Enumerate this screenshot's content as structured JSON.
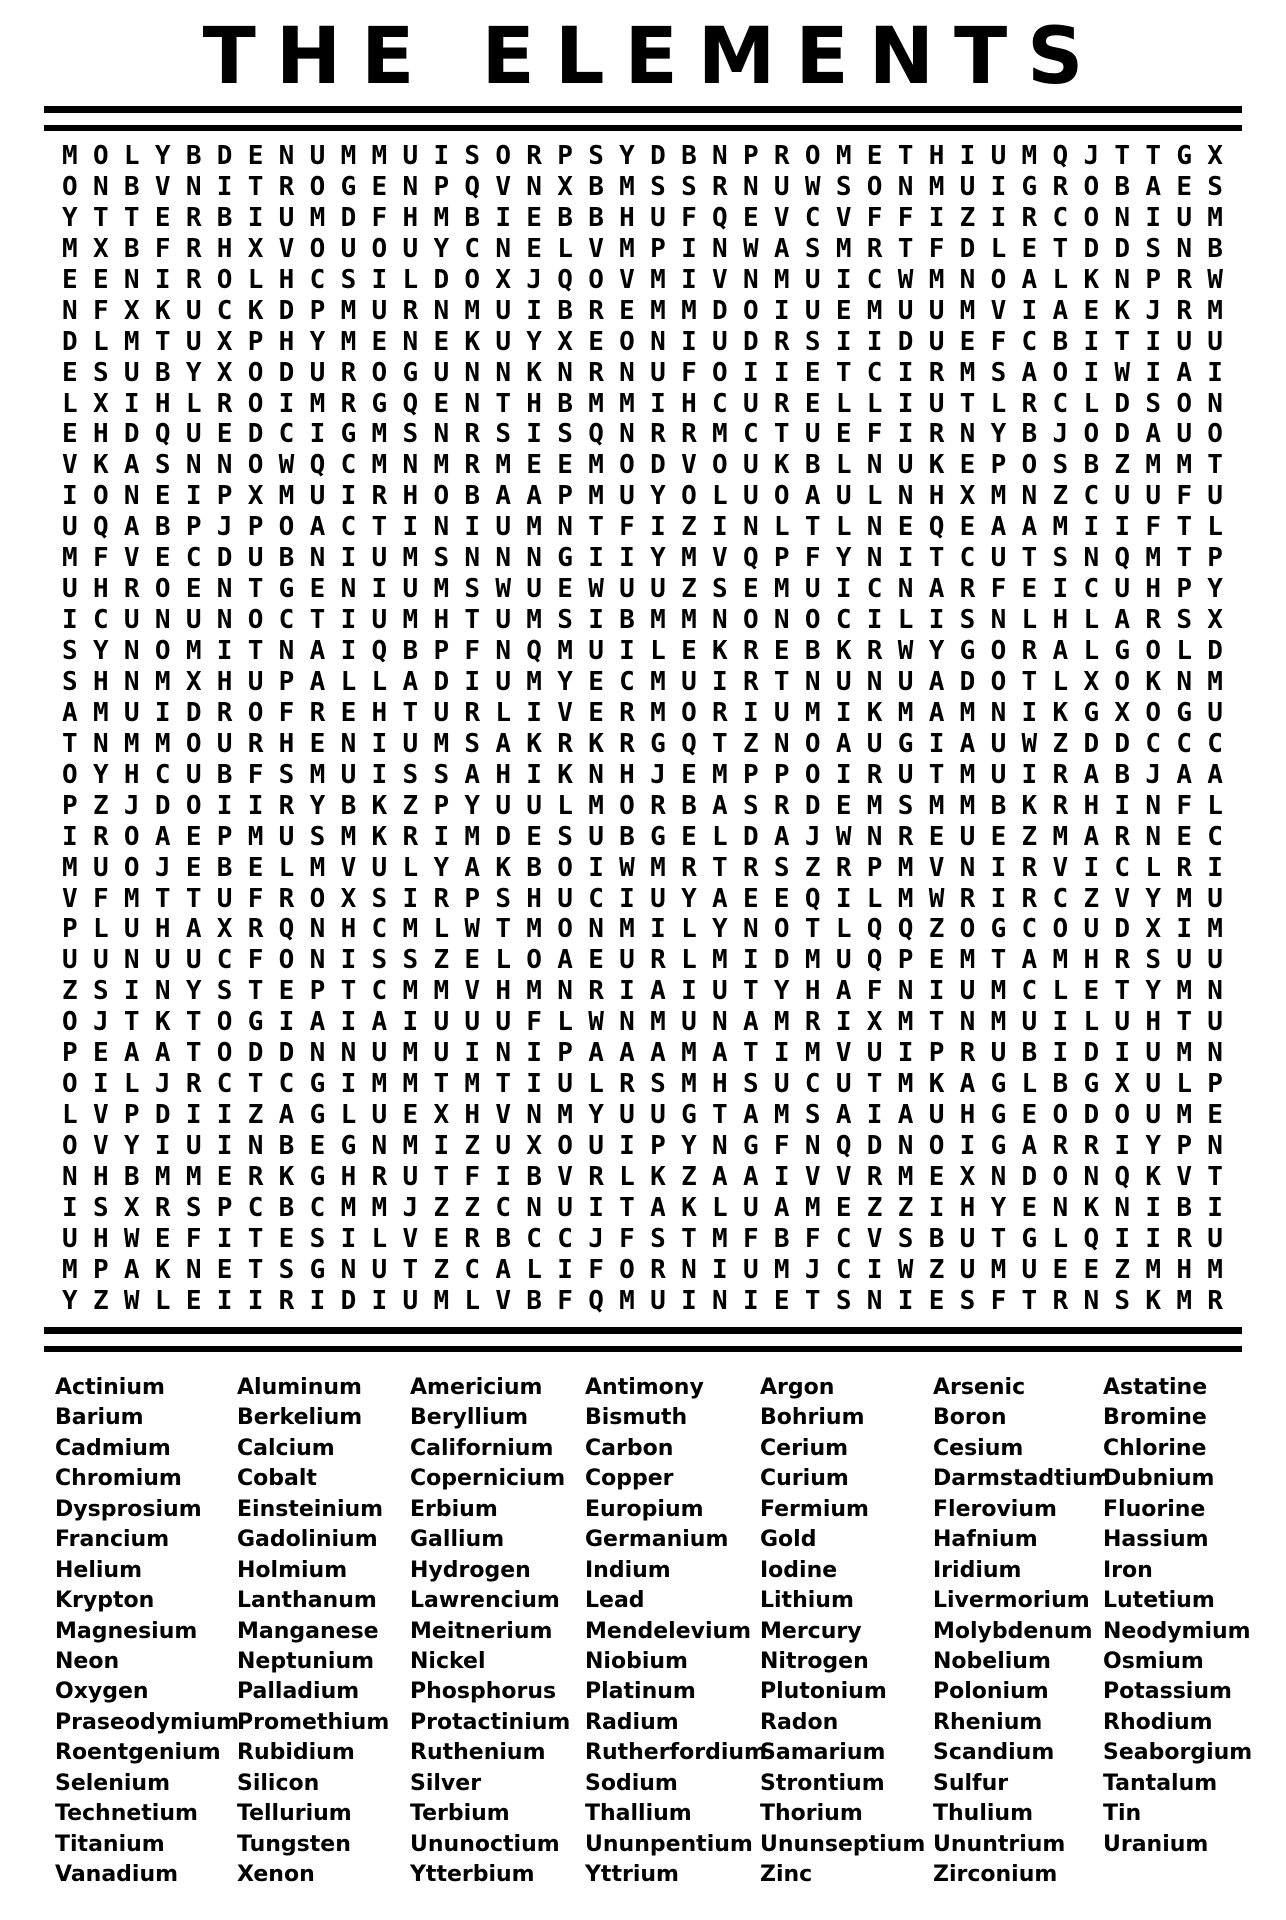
{
  "page": {
    "title": "THE ELEMENTS"
  },
  "colors": {
    "ink": "#000000",
    "paper": "#ffffff"
  },
  "puzzle": {
    "rows": [
      "MOLYBDENUMMUISORPSYDBNPROMETHIUMQJTTGX",
      "ONBVNITROGENPQVNXBMSSRNUWSONMUIGROBAES",
      "YTTERBIUMDFHMBIEBBHUFQEVCVFFIZIRCONIUM",
      "MXBFRHXVOUOUYCNELVMPINWASMRTFDLETDDSNB",
      "EENIROLHCSILDOXJQOVMIVNMUICWMNOALKNPRW",
      "NFXKUCKDPMURNMUIBREMMDOIUEMUUMVIAEKJRM",
      "DLMTUXPHYMENEKUYXEONIUDRSIIDUEFCBITIUU",
      "ESUBYXODUROGUNNKNRNUFOIIETCIRMSAOIWIAI",
      "LXIHLROIMRGQENTHBMMIHCURELLIUTLRCLDSON",
      "EHDQUEDCIGMSNRSISQNRRMCTUEFIRNYBJODAUO",
      "VKASNNOWQCMNMRMEEMODVOUKBLNUKEPOSBZMMT",
      "IONEIPXMUIRHOBAAPMUYOLUOAULNHXMNZCUUFU",
      "UQABPJPOACTINIUMNTFIZINLTLNEQEAAMIIFTL",
      "MFVECDUBNIUMSNNNGIIYMVQPFYNITCUTSNQMTP",
      "UHROENTGENIUMSWUEWUUZSEMUICNARFEICUHPY",
      "ICUNUNOCTIUMHTUMSIBMMNONOCILISNLHLARSX",
      "SYNOMITNAIQBPFNQMUILEKREBKRWYGORALGOLD",
      "SHNMXHUPALLADIUMYECMUIRTNUNUADOTLXOKNM",
      "AMUIDROFREHTURLIVERMORIUMIKMAMNIKGXOGU",
      "TNMMOURHENIUMSAKRKRGQTZNOAUGIAUWZDDCCC",
      "OYHCUBFSMUISSAHIKNHJEMPPOIRUTMUIRABJAA",
      "PZJDOIIRYBKZPYUULMORBASRDEMSMMBKRHINFL",
      "IROAEPMUSMKRIMDESUBGELDAJWNREUEZMARNEC",
      "MUOJEBELMVULYAKBOIWMRTRSZRPMVNIRVICLRI",
      "VFMTTUFROXSIRPSHUCIUYAEEQILMWRIRCZVYMU",
      "PLUHAXRQNHCMLWTMONMILYNOTLQQZOGCOUDXIM",
      "UUNUUCFONISSZELOAEURLMIDMUQPEMTAMHRSUU",
      "ZSINYSTEPTCMMVHMNRIAIUTYHAFNIUMCLETYMN",
      "OJTKTOGIAIAIUUUFLWNMUNAMRIXMTNMUILUHTU",
      "PEAATODDNNUMUINIPAAAMATIMVUIPRUBIDIUMN",
      "OILJRCTCGIMMTMTIULRSMHSUCUTMKAGLBGXULP",
      "LVPDIIZAGLUEXHVNMYUUGTAMSAIAUHGEODOUME",
      "OVYIUINBEGNMIZUXOUIPYNGFNQDNOIGARRIYPN",
      "NHBMMERKGHRUTFIBVRLKZAAIVVRMEXNDONQKVT",
      "ISXRSPCBCMMJZZCNUITAKLUAMEZZIHYENKNIBI",
      "UHWEFITESILVERBCCJFSTMFBFCVSBUTGLQIIRU",
      "MPAKNETSGNUTZCALIFORNIUMJCIWZUMUEEZMHM",
      "YZWLEIIRIDIUMLVBFQMUINIETSNIESFTRNSKMR"
    ]
  },
  "word_list": {
    "words": [
      "Actinium",
      "Aluminum",
      "Americium",
      "Antimony",
      "Argon",
      "Arsenic",
      "Astatine",
      "Barium",
      "Berkelium",
      "Beryllium",
      "Bismuth",
      "Bohrium",
      "Boron",
      "Bromine",
      "Cadmium",
      "Calcium",
      "Californium",
      "Carbon",
      "Cerium",
      "Cesium",
      "Chlorine",
      "Chromium",
      "Cobalt",
      "Copernicium",
      "Copper",
      "Curium",
      "Darmstadtium",
      "Dubnium",
      "Dysprosium",
      "Einsteinium",
      "Erbium",
      "Europium",
      "Fermium",
      "Flerovium",
      "Fluorine",
      "Francium",
      "Gadolinium",
      "Gallium",
      "Germanium",
      "Gold",
      "Hafnium",
      "Hassium",
      "Helium",
      "Holmium",
      "Hydrogen",
      "Indium",
      "Iodine",
      "Iridium",
      "Iron",
      "Krypton",
      "Lanthanum",
      "Lawrencium",
      "Lead",
      "Lithium",
      "Livermorium",
      "Lutetium",
      "Magnesium",
      "Manganese",
      "Meitnerium",
      "Mendelevium",
      "Mercury",
      "Molybdenum",
      "Neodymium",
      "Neon",
      "Neptunium",
      "Nickel",
      "Niobium",
      "Nitrogen",
      "Nobelium",
      "Osmium",
      "Oxygen",
      "Palladium",
      "Phosphorus",
      "Platinum",
      "Plutonium",
      "Polonium",
      "Potassium",
      "Praseodymium",
      "Promethium",
      "Protactinium",
      "Radium",
      "Radon",
      "Rhenium",
      "Rhodium",
      "Roentgenium",
      "Rubidium",
      "Ruthenium",
      "Rutherfordium",
      "Samarium",
      "Scandium",
      "Seaborgium",
      "Selenium",
      "Silicon",
      "Silver",
      "Sodium",
      "Strontium",
      "Sulfur",
      "Tantalum",
      "Technetium",
      "Tellurium",
      "Terbium",
      "Thallium",
      "Thorium",
      "Thulium",
      "Tin",
      "Titanium",
      "Tungsten",
      "Ununoctium",
      "Ununpentium",
      "Ununseptium",
      "Ununtrium",
      "Uranium",
      "Vanadium",
      "Xenon",
      "Ytterbium",
      "Yttrium",
      "Zinc",
      "Zirconium"
    ]
  }
}
